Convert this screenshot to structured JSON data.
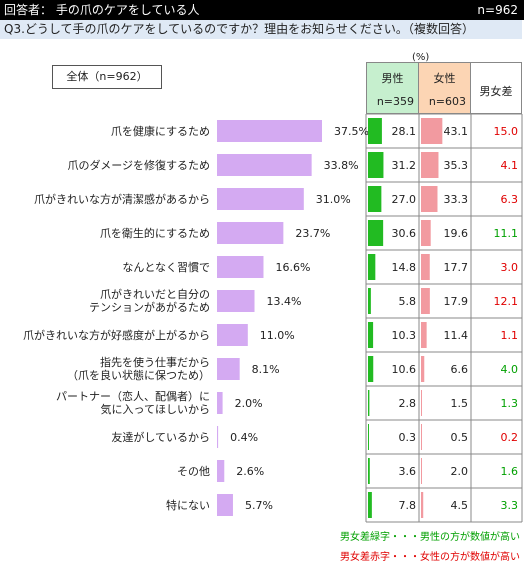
{
  "header": {
    "respondent": "回答者： 手の爪のケアをしている人",
    "n": "n=962"
  },
  "question": "Q3.どうして手の爪のケアをしているのですか？理由をお知らせください。（複数回答）",
  "total_label": "全体（n=962）",
  "unit": "(%)",
  "columns": {
    "male": "男性",
    "male_n": "n=359",
    "female": "女性",
    "female_n": "n=603",
    "diff": "男女差"
  },
  "notes": {
    "green": "男女差緑字・・・男性の方が数値が高い",
    "red": "男女差赤字・・・女性の方が数値が高い"
  },
  "colors": {
    "bar": "#d4aaf2",
    "male_bar": "#22bb22",
    "female_bar": "#f29aa0",
    "green": "#00a000",
    "red": "#e00000"
  },
  "chart_data": {
    "type": "bar",
    "categories": [
      [
        "爪を健康にするため"
      ],
      [
        "爪のダメージを修復するため"
      ],
      [
        "爪がきれいな方が清潔感があるから"
      ],
      [
        "爪を衛生的にするため"
      ],
      [
        "なんとなく習慣で"
      ],
      [
        "爪がきれいだと自分の",
        "テンションがあがるため"
      ],
      [
        "爪がきれいな方が好感度が上がるから"
      ],
      [
        "指先を使う仕事だから",
        "（爪を良い状態に保つため）"
      ],
      [
        "パートナー（恋人、配偶者）に",
        "気に入ってほしいから"
      ],
      [
        "友達がしているから"
      ],
      [
        "その他"
      ],
      [
        "特にない"
      ]
    ],
    "values": [
      37.5,
      33.8,
      31.0,
      23.7,
      16.6,
      13.4,
      11.0,
      8.1,
      2.0,
      0.4,
      2.6,
      5.7
    ],
    "value_labels": [
      "37.5%",
      "33.8%",
      "31.0%",
      "23.7%",
      "16.6%",
      "13.4%",
      "11.0%",
      "8.1%",
      "2.0%",
      "0.4%",
      "2.6%",
      "5.7%"
    ],
    "male": [
      "28.1",
      "31.2",
      "27.0",
      "30.6",
      "14.8",
      "5.8",
      "10.3",
      "10.6",
      "2.8",
      "0.3",
      "3.6",
      "7.8"
    ],
    "female": [
      "43.1",
      "35.3",
      "33.3",
      "19.6",
      "17.7",
      "17.9",
      "11.4",
      "6.6",
      "1.5",
      "0.5",
      "2.0",
      "4.5"
    ],
    "diff": [
      "15.0",
      "4.1",
      "6.3",
      "11.1",
      "3.0",
      "12.1",
      "1.1",
      "4.0",
      "1.3",
      "0.2",
      "1.6",
      "3.3"
    ],
    "diff_sign": [
      "red",
      "red",
      "red",
      "green",
      "red",
      "red",
      "red",
      "green",
      "green",
      "red",
      "green",
      "green"
    ]
  }
}
